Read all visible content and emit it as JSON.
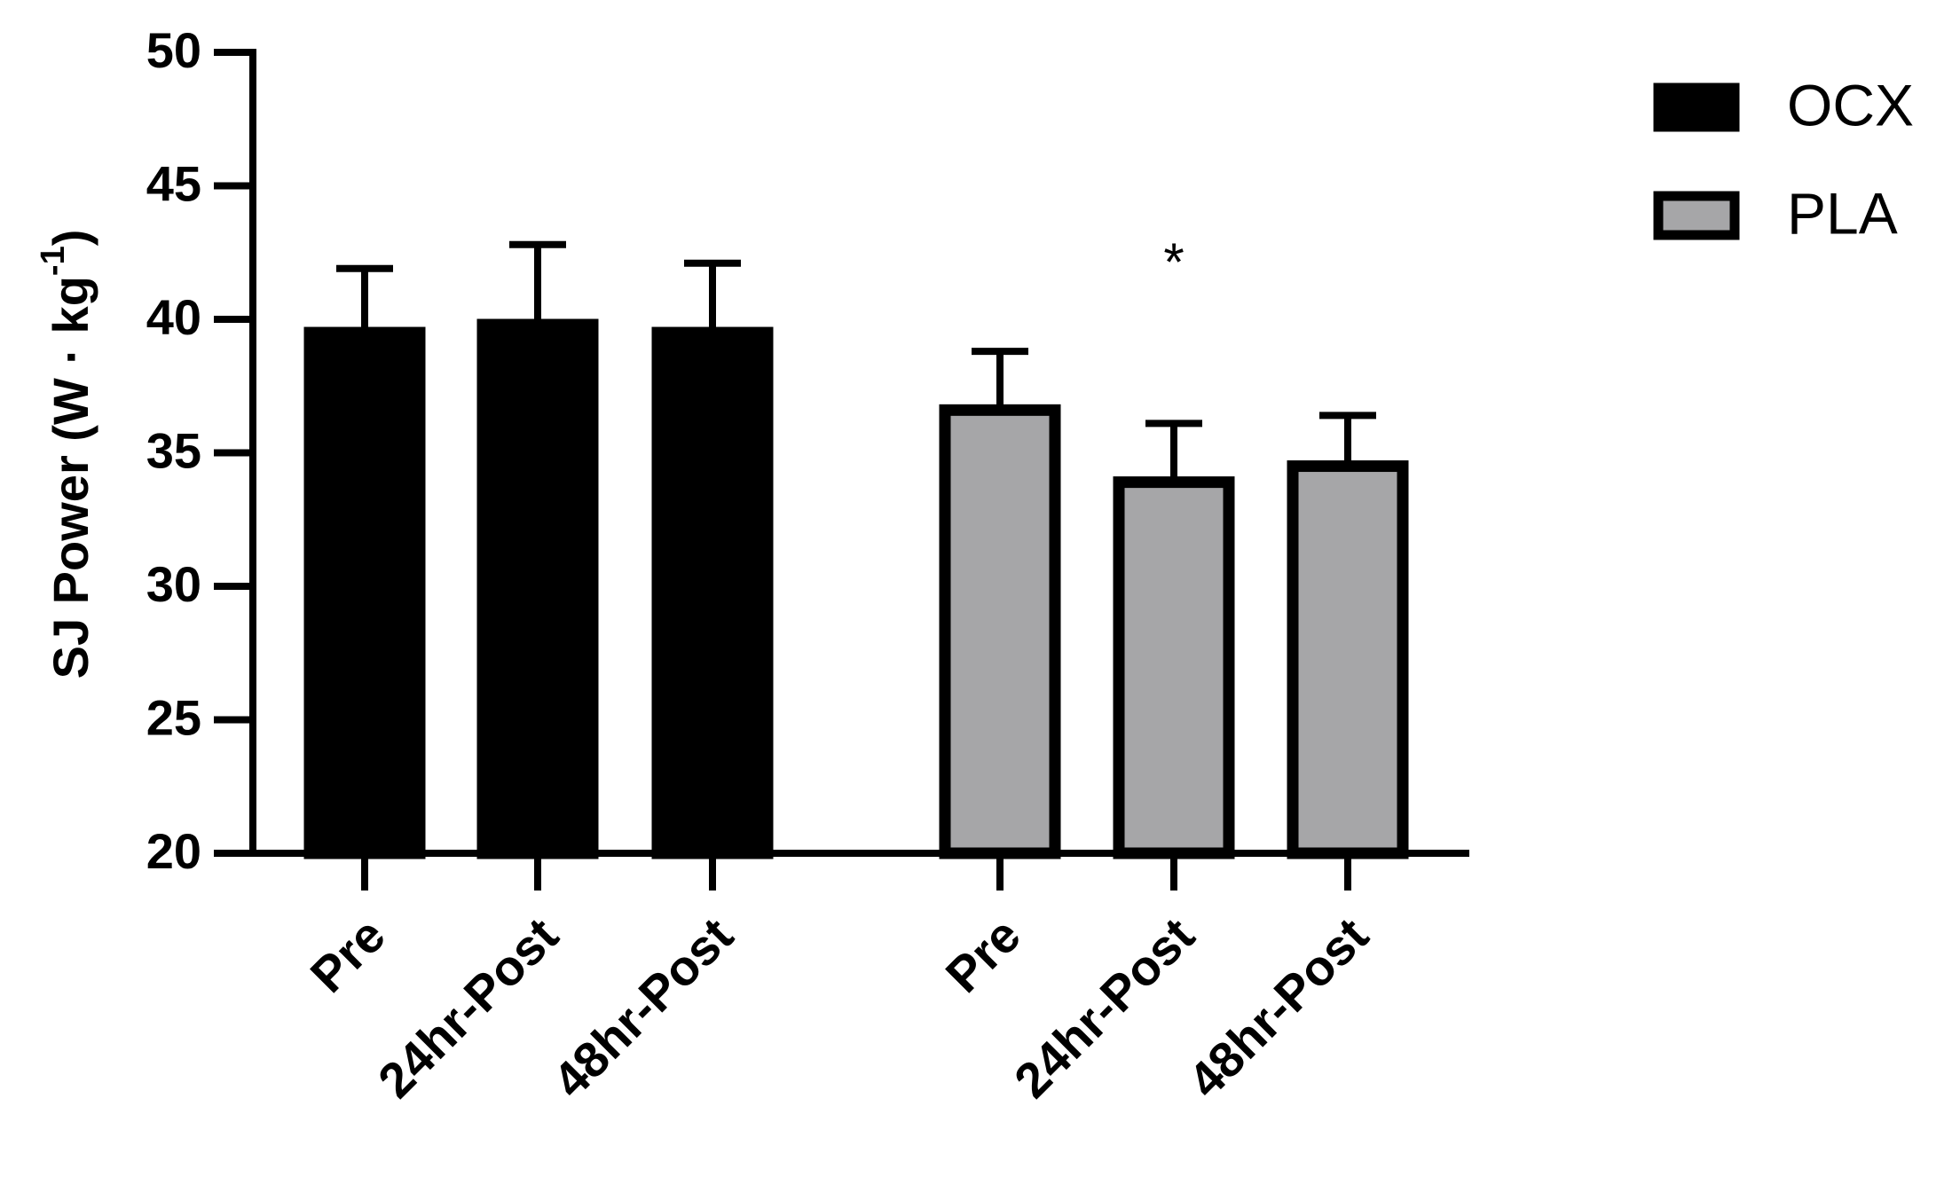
{
  "chart_data": {
    "type": "bar",
    "y_label": {
      "text": "SJ Power (W · kg",
      "superscript": "-1",
      "close": ")"
    },
    "categories": [
      "Pre",
      "24hr-Post",
      "48hr-Post",
      "Pre",
      "24hr-Post",
      "48hr-Post"
    ],
    "series": [
      {
        "name": "OCX",
        "color": "#000000",
        "values": [
          39.5,
          39.8,
          39.5,
          null,
          null,
          null
        ],
        "errors": [
          2.4,
          3.0,
          2.6,
          null,
          null,
          null
        ]
      },
      {
        "name": "PLA",
        "color": "#a6a6a8",
        "values": [
          null,
          null,
          null,
          36.6,
          33.9,
          34.5
        ],
        "errors": [
          null,
          null,
          null,
          2.2,
          2.2,
          1.9
        ]
      }
    ],
    "annotations": [
      {
        "text": "*",
        "category": 4
      }
    ],
    "ylim": [
      20,
      50
    ],
    "yticks": [
      20,
      25,
      30,
      35,
      40,
      45,
      50
    ],
    "legend": "top-right"
  }
}
